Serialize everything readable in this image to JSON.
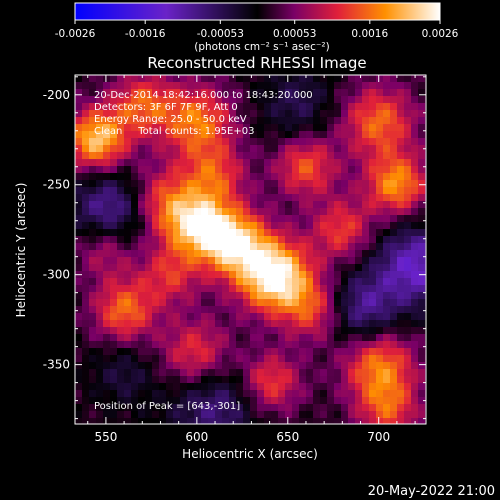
{
  "chart_data": {
    "type": "heatmap",
    "title": "Reconstructed RHESSI Image",
    "xlabel": "Heliocentric X (arcsec)",
    "ylabel": "Heliocentric Y (arcsec)",
    "xlim": [
      533,
      726
    ],
    "ylim": [
      -383,
      -189
    ],
    "x_ticks": [
      "550",
      "600",
      "650",
      "700"
    ],
    "x_tick_values": [
      550,
      600,
      650,
      700
    ],
    "y_ticks": [
      "-200",
      "-250",
      "-300",
      "-350"
    ],
    "y_tick_values": [
      -200,
      -250,
      -300,
      -350
    ],
    "colorbar": {
      "range": [
        -0.0026,
        0.0026
      ],
      "ticks": [
        "-0.0026",
        "-0.0016",
        "-0.00053",
        "0.00053",
        "0.0016",
        "0.0026"
      ],
      "tick_values": [
        -0.0026,
        -0.0016,
        -0.00053,
        0.00053,
        0.0016,
        0.0026
      ],
      "unit_label": "(photons cm⁻² s⁻¹ asec⁻²)"
    },
    "annotations": [
      "20-Dec-2014 18:42:16.000 to 18:43:20.000",
      "Detectors: 3F 6F 7F 9F, Att 0",
      "Energy Range: 25.0 - 50.0 keV",
      "Clean     Total counts: 1.95E+03"
    ],
    "peak_label": "Position of Peak = [643,-301]",
    "peak": [
      643,
      -301
    ],
    "colors": {
      "negative_low": "#0000ff",
      "negative_mid": "#7a2bb0",
      "zero": "#000000",
      "positive_mid": "#ff4000",
      "positive_high": "#ffffff"
    }
  },
  "footer": {
    "timestamp": "20-May-2022 21:00"
  }
}
